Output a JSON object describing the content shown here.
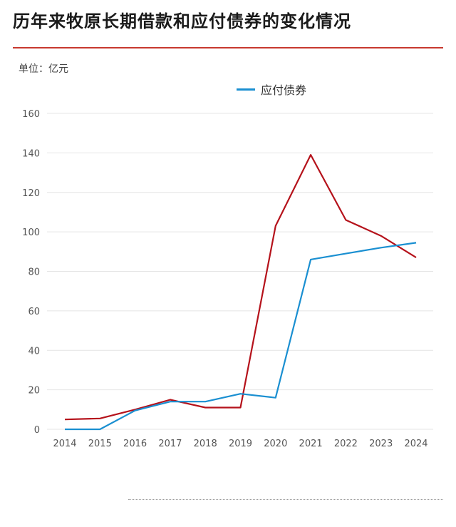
{
  "page": {
    "title": "历年来牧原长期借款和应付债券的变化情况",
    "unit_label": "单位：亿元"
  },
  "colors": {
    "accent": "#c8392f",
    "series_red": "#b5121b",
    "series_blue": "#1a8fd1"
  },
  "chart_data": {
    "type": "line",
    "x": [
      "2014",
      "2015",
      "2016",
      "2017",
      "2018",
      "2019",
      "2020",
      "2021",
      "2022",
      "2023",
      "2024"
    ],
    "ylim": [
      0,
      160
    ],
    "yticks": [
      0,
      20,
      40,
      60,
      80,
      100,
      120,
      140,
      160
    ],
    "ylabel": "单位：亿元",
    "grid": true,
    "legend_position": "top-right",
    "series": [
      {
        "name": "",
        "color": "#b5121b",
        "values": [
          5,
          5.5,
          10,
          15,
          11,
          11,
          103,
          139,
          106,
          98,
          87
        ]
      },
      {
        "name": "应付债券",
        "color": "#1a8fd1",
        "values": [
          0,
          0,
          9.5,
          14,
          14,
          18,
          16,
          86,
          89,
          92,
          94.5
        ]
      }
    ]
  }
}
